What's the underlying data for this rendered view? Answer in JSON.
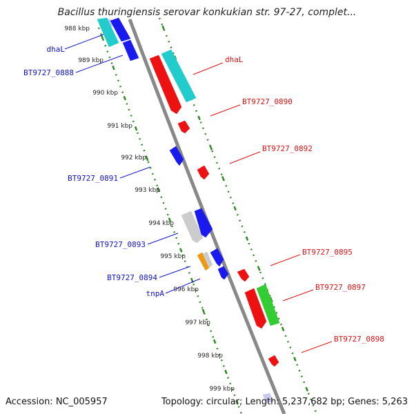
{
  "title": "Bacillus thuringiensis serovar konkukian str. 97-27, complet...",
  "footer": {
    "accession": "Accession: NC_005957",
    "summary": "Topology: circular; Length: 5,237,682 bp; Genes: 5,263"
  },
  "colors": {
    "backbone": "#888888",
    "ruler": "#2e8b22",
    "label_left": "#1010cc",
    "label_right": "#dd1111"
  },
  "kbp_ticks": [
    "988 kbp",
    "989 kbp",
    "990 kbp",
    "991 kbp",
    "992 kbp",
    "993 kbp",
    "994 kbp",
    "995 kbp",
    "996 kbp",
    "997 kbp",
    "998 kbp",
    "999 kbp"
  ],
  "left_labels": [
    "dhaL",
    "BT9727_0888",
    "BT9727_0891",
    "BT9727_0893",
    "BT9727_0894",
    "tnpA"
  ],
  "right_labels": [
    "dhaL",
    "BT9727_0890",
    "BT9727_0892",
    "BT9727_0895",
    "BT9727_0897",
    "BT9727_0898"
  ],
  "features": [
    {
      "name": "feature-lavender-top",
      "color": "#c8c8f0"
    },
    {
      "name": "feature-cyan-left-top",
      "color": "#22cccc"
    },
    {
      "name": "feature-blue-left-top",
      "color": "#1a1aee"
    },
    {
      "name": "feature-blue-left-2",
      "color": "#1a1aee"
    },
    {
      "name": "feature-red-right-1",
      "color": "#ee1111"
    },
    {
      "name": "feature-cyan-right-1",
      "color": "#22cccc"
    },
    {
      "name": "feature-red-small-1",
      "color": "#ee1111"
    },
    {
      "name": "feature-blue-small-1",
      "color": "#1a1aee"
    },
    {
      "name": "feature-red-small-2",
      "color": "#ee1111"
    },
    {
      "name": "feature-gray-left",
      "color": "#cccccc"
    },
    {
      "name": "feature-blue-left-3",
      "color": "#1a1aee"
    },
    {
      "name": "feature-orange-small",
      "color": "#ee9911"
    },
    {
      "name": "feature-gray-small",
      "color": "#cccccc"
    },
    {
      "name": "feature-blue-small-2",
      "color": "#1a1aee"
    },
    {
      "name": "feature-blue-small-3",
      "color": "#1a1aee"
    },
    {
      "name": "feature-red-small-3",
      "color": "#ee1111"
    },
    {
      "name": "feature-red-right-2",
      "color": "#ee1111"
    },
    {
      "name": "feature-green-right",
      "color": "#33cc33"
    },
    {
      "name": "feature-red-small-4",
      "color": "#ee1111"
    },
    {
      "name": "feature-lavender-bottom",
      "color": "#c8c8f0"
    }
  ]
}
